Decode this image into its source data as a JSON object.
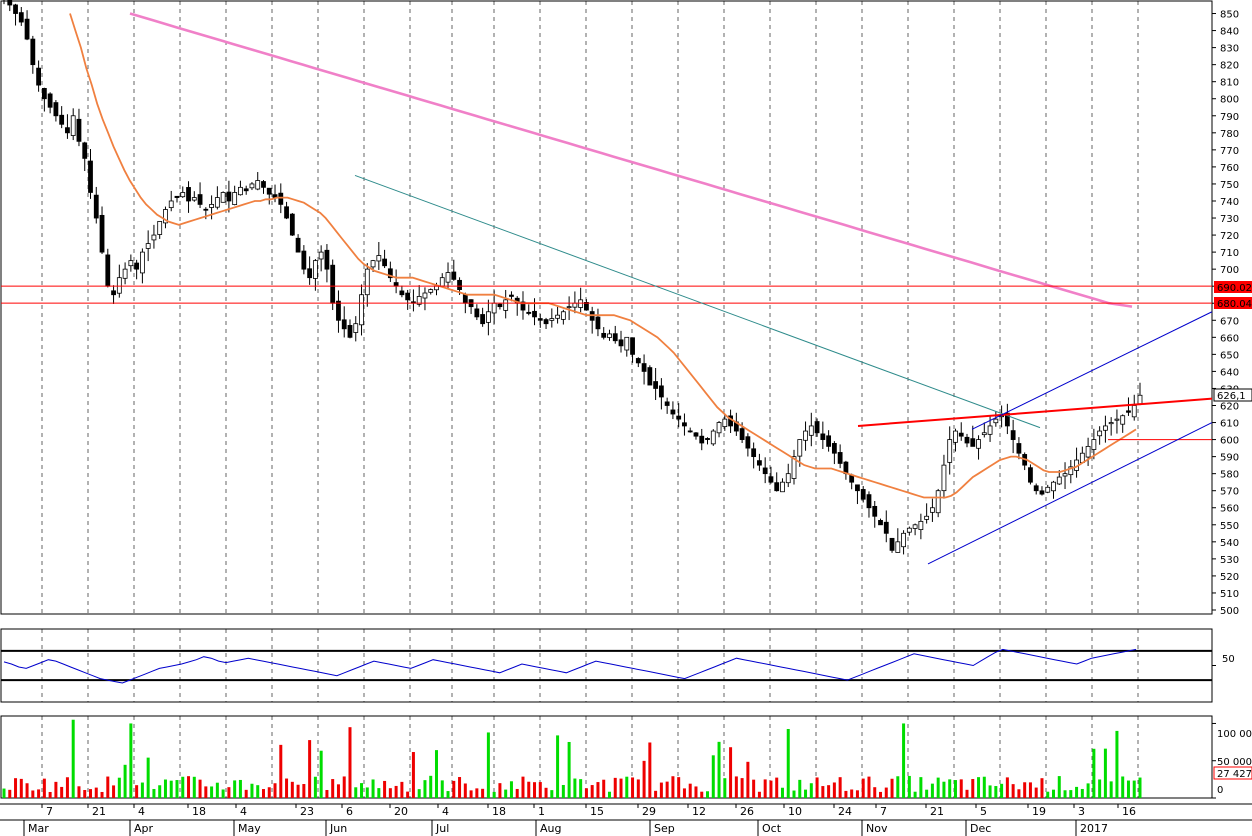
{
  "chart_data": {
    "type": "candlestick",
    "price_panel": {
      "ylim": [
        500,
        855
      ],
      "y_ticks": [
        500,
        510,
        520,
        530,
        540,
        550,
        560,
        570,
        580,
        590,
        600,
        610,
        620,
        630,
        640,
        650,
        660,
        670,
        680,
        690,
        700,
        710,
        720,
        730,
        740,
        750,
        760,
        770,
        780,
        790,
        800,
        810,
        820,
        830,
        840,
        850
      ],
      "last_price_label": "626,1",
      "level_labels": [
        "690.02",
        "680.04"
      ],
      "levels": [
        690.02,
        680.04,
        600
      ],
      "close_series": [
        860,
        855,
        850,
        845,
        835,
        820,
        808,
        800,
        795,
        790,
        785,
        780,
        790,
        775,
        765,
        745,
        730,
        710,
        690,
        685,
        695,
        700,
        705,
        700,
        710,
        715,
        720,
        728,
        735,
        740,
        742,
        745,
        740,
        742,
        738,
        735,
        738,
        742,
        745,
        740,
        745,
        748,
        746,
        750,
        752,
        748,
        744,
        742,
        738,
        730,
        720,
        710,
        700,
        695,
        705,
        710,
        700,
        680,
        670,
        665,
        660,
        668,
        685,
        700,
        705,
        708,
        702,
        695,
        690,
        685,
        682,
        680,
        684,
        686,
        688,
        690,
        695,
        698,
        694,
        688,
        680,
        678,
        672,
        668,
        675,
        680,
        678,
        682,
        684,
        680,
        676,
        674,
        672,
        670,
        668,
        671,
        673,
        675,
        678,
        680,
        682,
        676,
        670,
        665,
        660,
        662,
        658,
        655,
        660,
        650,
        645,
        640,
        632,
        630,
        625,
        620,
        615,
        612,
        608,
        605,
        602,
        598,
        600,
        605,
        610,
        612,
        608,
        605,
        600,
        595,
        590,
        585,
        580,
        575,
        570,
        575,
        580,
        590,
        600,
        605,
        608,
        604,
        600,
        596,
        592,
        586,
        580,
        575,
        570,
        565,
        560,
        555,
        550,
        545,
        535,
        540,
        545,
        548,
        550,
        552,
        555,
        560,
        570,
        585,
        600,
        605,
        602,
        598,
        596,
        600,
        604,
        608,
        612,
        614,
        608,
        600,
        592,
        585,
        575,
        570,
        568,
        572,
        575,
        578,
        580,
        584,
        588,
        592,
        596,
        600,
        605,
        608,
        610,
        612,
        614,
        616,
        620,
        626
      ]
    },
    "ma_fast": [
      850,
      840,
      830,
      818,
      808,
      797,
      788,
      780,
      772,
      765,
      758,
      752,
      747,
      742,
      738,
      735,
      732,
      730,
      728,
      727,
      726,
      727,
      728,
      729,
      730,
      731,
      732,
      733,
      734,
      735,
      736,
      737,
      738,
      739,
      740,
      740,
      741,
      741,
      742,
      742,
      742,
      741,
      740,
      739,
      737,
      735,
      733,
      730,
      726,
      722,
      718,
      714,
      710,
      706,
      703,
      701,
      699,
      698,
      697,
      696,
      695,
      695,
      695,
      695,
      694,
      693,
      692,
      691,
      690,
      689,
      688,
      687,
      686,
      685,
      685,
      685,
      685,
      685,
      685,
      684,
      683,
      682,
      681,
      680,
      680,
      680,
      680,
      680,
      680,
      679,
      678,
      677,
      676,
      675,
      674,
      673,
      673,
      673,
      673,
      673,
      673,
      672,
      671,
      670,
      668,
      666,
      664,
      662,
      660,
      657,
      654,
      651,
      647,
      643,
      639,
      635,
      631,
      627,
      623,
      619,
      616,
      613,
      611,
      609,
      607,
      605,
      603,
      601,
      599,
      597,
      595,
      593,
      591,
      589,
      587,
      585,
      584,
      583,
      583,
      583,
      583,
      582,
      581,
      580,
      579,
      578,
      577,
      576,
      575,
      574,
      573,
      572,
      571,
      570,
      569,
      568,
      567,
      566,
      566,
      566,
      566,
      566,
      567,
      569,
      572,
      575,
      578,
      580,
      582,
      584,
      586,
      588,
      589,
      590,
      590,
      589,
      588,
      586,
      584,
      582,
      581,
      581,
      581,
      582,
      583,
      584,
      586,
      588,
      590,
      592,
      594,
      596,
      598,
      600,
      602,
      604,
      606
    ],
    "ma_slow": [
      850,
      848,
      846,
      844,
      842,
      840,
      838,
      836,
      834,
      832,
      830,
      828,
      826,
      824,
      822,
      820,
      818,
      816,
      814,
      812,
      810,
      808,
      806,
      804,
      802,
      800,
      798,
      796,
      794,
      792,
      790,
      788,
      786,
      784,
      782,
      780,
      778,
      776,
      774,
      772,
      770,
      768,
      766,
      764,
      762,
      760,
      758,
      756,
      754,
      752,
      750,
      748,
      746,
      744,
      742,
      740,
      738,
      736,
      734,
      732,
      730,
      728,
      726,
      724,
      722,
      720,
      718,
      716,
      714,
      712,
      710,
      708,
      706,
      704,
      702,
      700,
      698,
      696,
      694,
      692,
      690,
      688,
      686,
      684,
      682,
      680,
      679,
      678
    ],
    "rsi_panel": {
      "ylim": [
        0,
        100
      ],
      "y_ticks": [
        50
      ],
      "bands": [
        70,
        30
      ],
      "values": [
        55,
        52,
        48,
        46,
        50,
        54,
        58,
        56,
        52,
        48,
        44,
        40,
        36,
        32,
        30,
        28,
        26,
        30,
        34,
        38,
        42,
        46,
        48,
        50,
        52,
        55,
        58,
        62,
        60,
        56,
        54,
        56,
        58,
        60,
        58,
        56,
        54,
        52,
        50,
        48,
        46,
        44,
        42,
        40,
        38,
        36,
        40,
        44,
        48,
        52,
        56,
        54,
        52,
        50,
        48,
        46,
        50,
        54,
        58,
        56,
        54,
        52,
        50,
        48,
        46,
        44,
        42,
        40,
        44,
        48,
        52,
        50,
        48,
        46,
        44,
        42,
        40,
        44,
        48,
        52,
        56,
        54,
        52,
        50,
        48,
        46,
        44,
        42,
        40,
        38,
        36,
        34,
        32,
        36,
        40,
        44,
        48,
        52,
        56,
        60,
        58,
        56,
        54,
        52,
        50,
        48,
        46,
        44,
        42,
        40,
        38,
        36,
        34,
        32,
        30,
        34,
        38,
        42,
        46,
        50,
        54,
        58,
        62,
        66,
        64,
        62,
        60,
        58,
        56,
        54,
        52,
        50,
        56,
        62,
        68,
        72,
        70,
        68,
        66,
        64,
        62,
        60,
        58,
        56,
        54,
        52,
        56,
        60,
        62,
        64,
        66,
        68,
        70,
        72
      ]
    },
    "volume_panel": {
      "ylim": [
        0,
        110000
      ],
      "y_tick_labels": [
        "100 000",
        "50 000",
        "0"
      ],
      "y_ticks": [
        100000,
        50000,
        0
      ],
      "last_volume_label": "27 427",
      "last_volume": 27427
    },
    "x_ticks": [
      "7",
      "21",
      "4",
      "18",
      "4",
      "23",
      "6",
      "20",
      "4",
      "18",
      "1",
      "15",
      "29",
      "12",
      "26",
      "10",
      "24",
      "7",
      "21",
      "5",
      "19",
      "3",
      "16"
    ],
    "months": [
      "Mar",
      "Apr",
      "May",
      "Jun",
      "Jul",
      "Aug",
      "Sep",
      "Oct",
      "Nov",
      "Dec",
      "2017"
    ]
  }
}
